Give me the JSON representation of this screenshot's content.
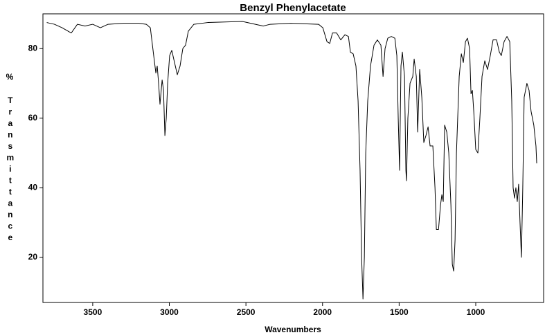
{
  "chart_data": {
    "type": "line",
    "title": "Benzyl Phenylacetate",
    "x_label": "Wavenumbers",
    "y_label_unit": "%",
    "y_label": "Transmittance",
    "color": "#000000",
    "grid": false,
    "xlim": [
      3825,
      557
    ],
    "ylim": [
      7,
      90
    ],
    "xticks": [
      3500,
      3000,
      2500,
      2000,
      1500,
      1000
    ],
    "yticks": [
      20,
      40,
      60,
      80
    ],
    "x": [
      3800,
      3750,
      3700,
      3640,
      3600,
      3550,
      3500,
      3450,
      3400,
      3300,
      3200,
      3150,
      3124,
      3102,
      3088,
      3079,
      3070,
      3061,
      3047,
      3038,
      3029,
      3020,
      3011,
      2998,
      2984,
      2966,
      2948,
      2930,
      2912,
      2894,
      2876,
      2840,
      2749,
      2523,
      2387,
      2342,
      2207,
      2026,
      1998,
      1971,
      1953,
      1935,
      1908,
      1881,
      1854,
      1831,
      1818,
      1800,
      1782,
      1768,
      1755,
      1745,
      1736,
      1727,
      1718,
      1705,
      1687,
      1664,
      1642,
      1619,
      1605,
      1592,
      1574,
      1551,
      1528,
      1515,
      1506,
      1497,
      1488,
      1479,
      1465,
      1456,
      1452,
      1443,
      1429,
      1411,
      1402,
      1388,
      1379,
      1366,
      1352,
      1339,
      1325,
      1311,
      1298,
      1280,
      1266,
      1257,
      1243,
      1230,
      1221,
      1212,
      1203,
      1189,
      1176,
      1162,
      1153,
      1144,
      1135,
      1126,
      1108,
      1094,
      1081,
      1067,
      1054,
      1040,
      1031,
      1022,
      1013,
      1000,
      986,
      973,
      959,
      941,
      923,
      905,
      887,
      864,
      846,
      833,
      815,
      796,
      778,
      765,
      756,
      747,
      738,
      729,
      720,
      711,
      702,
      693,
      684,
      666,
      652,
      639,
      621,
      607,
      602
    ],
    "values": [
      87.5,
      87,
      86,
      84.5,
      87,
      86.5,
      87,
      86,
      87,
      87.3,
      87.3,
      87,
      86,
      78,
      73,
      75,
      70,
      64,
      71,
      68,
      55,
      60,
      70,
      78,
      79.5,
      76,
      72.5,
      75,
      80,
      81,
      85,
      87,
      87.5,
      87.8,
      86.5,
      87,
      87.3,
      87,
      86,
      82,
      81.5,
      84.5,
      84.5,
      82.5,
      84,
      83.5,
      79,
      78.5,
      75,
      65,
      45,
      20,
      8,
      20,
      50,
      65,
      75,
      81,
      82.5,
      81,
      72,
      80,
      83,
      83.5,
      83,
      78,
      60,
      45,
      75,
      79,
      72,
      45,
      42,
      60,
      70,
      72,
      77,
      72,
      56,
      74,
      66,
      53,
      55,
      57.5,
      52,
      52,
      40,
      28,
      28,
      35,
      38,
      36,
      58,
      56,
      50,
      35,
      18,
      16,
      25,
      50,
      72,
      78.5,
      76,
      82,
      83,
      80,
      67,
      68,
      62,
      51,
      50,
      60,
      72,
      76.5,
      74,
      78,
      82.5,
      82.5,
      79,
      78,
      82,
      83.5,
      82,
      65,
      40,
      37,
      40,
      36,
      41,
      30,
      20,
      40,
      66,
      70,
      68,
      62,
      58,
      52,
      47
    ]
  }
}
